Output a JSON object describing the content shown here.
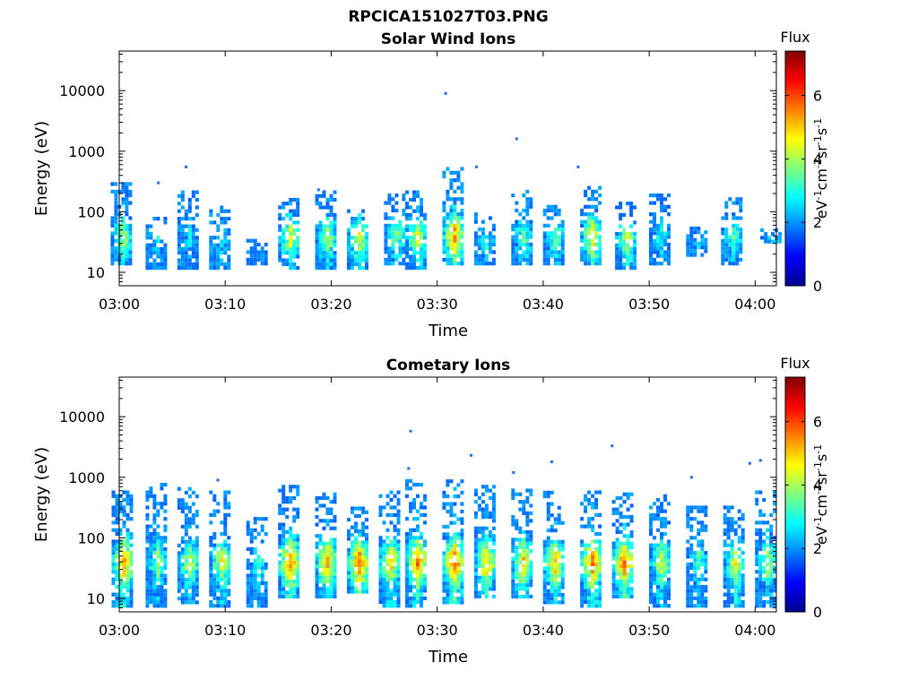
{
  "figure": {
    "title": "RPCICA151027T03.PNG"
  },
  "chart_data": [
    {
      "type": "heatmap",
      "title": "Solar Wind Ions",
      "xlabel": "Time",
      "ylabel": "Energy (eV)",
      "y_scale": "log",
      "ylim": [
        6,
        45000
      ],
      "xlim": [
        "03:00",
        "04:02"
      ],
      "xticks": [
        "03:00",
        "03:10",
        "03:20",
        "03:30",
        "03:40",
        "03:50",
        "04:00"
      ],
      "yticks": [
        "10",
        "100",
        "1000",
        "10000"
      ],
      "colorbar": {
        "title": "Flux",
        "label": "eV-1cm-2sr-1s-1",
        "ticks": [
          "0",
          "2",
          "4",
          "6"
        ],
        "range": [
          0,
          7.4
        ],
        "colormap": "jet"
      },
      "bursts": [
        {
          "t": 0.2,
          "emin": 13,
          "emax": 300,
          "peak": 4.8
        },
        {
          "t": 3.5,
          "emin": 11,
          "emax": 85,
          "peak": 3.8
        },
        {
          "t": 6.5,
          "emin": 11,
          "emax": 200,
          "peak": 3.2
        },
        {
          "t": 9.5,
          "emin": 11,
          "emax": 110,
          "peak": 3.5
        },
        {
          "t": 13.0,
          "emin": 13,
          "emax": 35,
          "peak": 3.0
        },
        {
          "t": 16.0,
          "emin": 11,
          "emax": 160,
          "peak": 5.4
        },
        {
          "t": 19.5,
          "emin": 11,
          "emax": 200,
          "peak": 5.0
        },
        {
          "t": 22.5,
          "emin": 11,
          "emax": 100,
          "peak": 5.8
        },
        {
          "t": 26.0,
          "emin": 13,
          "emax": 200,
          "peak": 4.5
        },
        {
          "t": 28.0,
          "emin": 11,
          "emax": 210,
          "peak": 5.2
        },
        {
          "t": 31.5,
          "emin": 13,
          "emax": 480,
          "peak": 6.1
        },
        {
          "t": 34.5,
          "emin": 13,
          "emax": 90,
          "peak": 4.0
        },
        {
          "t": 38.0,
          "emin": 13,
          "emax": 260,
          "peak": 4.2
        },
        {
          "t": 41.0,
          "emin": 13,
          "emax": 120,
          "peak": 4.5
        },
        {
          "t": 44.5,
          "emin": 13,
          "emax": 260,
          "peak": 5.6
        },
        {
          "t": 47.8,
          "emin": 11,
          "emax": 140,
          "peak": 5.5
        },
        {
          "t": 51.0,
          "emin": 13,
          "emax": 180,
          "peak": 3.5
        },
        {
          "t": 54.5,
          "emin": 18,
          "emax": 55,
          "peak": 3.0
        },
        {
          "t": 57.8,
          "emin": 13,
          "emax": 160,
          "peak": 4.2
        },
        {
          "t": 61.5,
          "emin": 30,
          "emax": 50,
          "peak": 3.0
        }
      ],
      "isolated_points": [
        {
          "t": 30.8,
          "energy": 9000
        },
        {
          "t": 37.5,
          "energy": 1600
        },
        {
          "t": 6.3,
          "energy": 550
        },
        {
          "t": 33.7,
          "energy": 550
        },
        {
          "t": 43.3,
          "energy": 550
        },
        {
          "t": 3.7,
          "energy": 300
        },
        {
          "t": 18.8,
          "energy": 230
        }
      ]
    },
    {
      "type": "heatmap",
      "title": "Cometary Ions",
      "xlabel": "Time",
      "ylabel": "Energy (eV)",
      "y_scale": "log",
      "ylim": [
        6,
        45000
      ],
      "xlim": [
        "03:00",
        "04:02"
      ],
      "xticks": [
        "03:00",
        "03:10",
        "03:20",
        "03:30",
        "03:40",
        "03:50",
        "04:00"
      ],
      "yticks": [
        "10",
        "100",
        "1000",
        "10000"
      ],
      "colorbar": {
        "title": "Flux",
        "label": "eV-1cm-2sr-1s-1",
        "ticks": [
          "0",
          "2",
          "4",
          "6"
        ],
        "range": [
          0,
          7.4
        ],
        "colormap": "jet"
      },
      "bursts": [
        {
          "t": 0.3,
          "emin": 7,
          "emax": 600,
          "peak": 6.4
        },
        {
          "t": 3.5,
          "emin": 7,
          "emax": 800,
          "peak": 4.6
        },
        {
          "t": 6.5,
          "emin": 8,
          "emax": 650,
          "peak": 5.0
        },
        {
          "t": 9.5,
          "emin": 7,
          "emax": 550,
          "peak": 5.4
        },
        {
          "t": 13.0,
          "emin": 7,
          "emax": 200,
          "peak": 4.2
        },
        {
          "t": 16.0,
          "emin": 10,
          "emax": 700,
          "peak": 6.6
        },
        {
          "t": 19.5,
          "emin": 10,
          "emax": 500,
          "peak": 6.2
        },
        {
          "t": 22.5,
          "emin": 12,
          "emax": 300,
          "peak": 6.8
        },
        {
          "t": 25.5,
          "emin": 7,
          "emax": 600,
          "peak": 6.0
        },
        {
          "t": 28.0,
          "emin": 7,
          "emax": 900,
          "peak": 6.6
        },
        {
          "t": 31.5,
          "emin": 8,
          "emax": 900,
          "peak": 6.9
        },
        {
          "t": 34.5,
          "emin": 10,
          "emax": 700,
          "peak": 6.0
        },
        {
          "t": 38.0,
          "emin": 10,
          "emax": 600,
          "peak": 5.8
        },
        {
          "t": 41.0,
          "emin": 8,
          "emax": 550,
          "peak": 6.1
        },
        {
          "t": 44.5,
          "emin": 7,
          "emax": 600,
          "peak": 6.8
        },
        {
          "t": 47.5,
          "emin": 10,
          "emax": 500,
          "peak": 6.8
        },
        {
          "t": 51.0,
          "emin": 7,
          "emax": 500,
          "peak": 5.2
        },
        {
          "t": 54.5,
          "emin": 7,
          "emax": 300,
          "peak": 4.4
        },
        {
          "t": 58.0,
          "emin": 7,
          "emax": 300,
          "peak": 5.6
        },
        {
          "t": 61.0,
          "emin": 7,
          "emax": 550,
          "peak": 5.0
        }
      ],
      "isolated_points": [
        {
          "t": 27.5,
          "energy": 5800
        },
        {
          "t": 46.5,
          "energy": 3300
        },
        {
          "t": 33.2,
          "energy": 2300
        },
        {
          "t": 40.8,
          "energy": 1800
        },
        {
          "t": 59.5,
          "energy": 1700
        },
        {
          "t": 60.5,
          "energy": 1900
        },
        {
          "t": 27.3,
          "energy": 1400
        },
        {
          "t": 37.2,
          "energy": 1200
        },
        {
          "t": 54.0,
          "energy": 1000
        },
        {
          "t": 9.3,
          "energy": 900
        }
      ]
    }
  ]
}
